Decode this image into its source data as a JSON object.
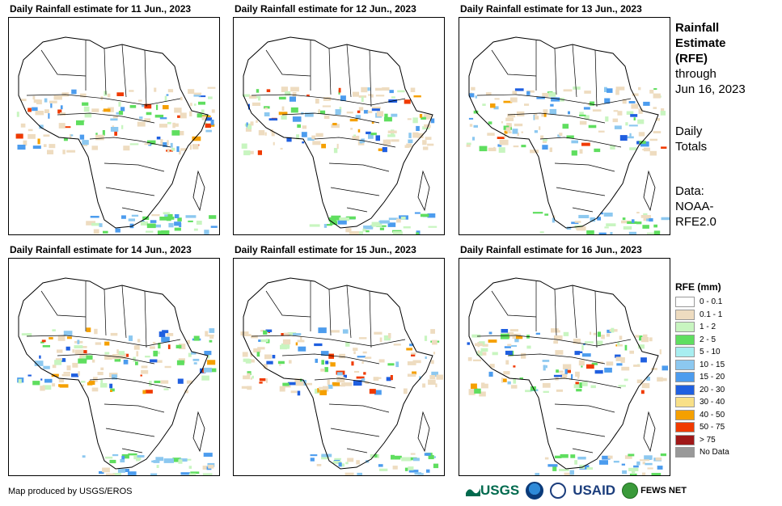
{
  "panels": [
    {
      "title": "Daily Rainfall estimate for 11 Jun., 2023"
    },
    {
      "title": "Daily Rainfall estimate for 12 Jun., 2023"
    },
    {
      "title": "Daily Rainfall estimate for 13 Jun., 2023"
    },
    {
      "title": "Daily Rainfall estimate for 14 Jun., 2023"
    },
    {
      "title": "Daily Rainfall estimate for 15 Jun., 2023"
    },
    {
      "title": "Daily Rainfall estimate for 16 Jun., 2023"
    }
  ],
  "side": {
    "title_line1": "Rainfall",
    "title_line2": "Estimate",
    "title_line3": "(RFE)",
    "through": "through",
    "date": "Jun 16, 2023",
    "daily_line1": "Daily",
    "daily_line2": "Totals",
    "data_line1": "Data:",
    "data_line2": "NOAA-",
    "data_line3": "RFE2.0"
  },
  "legend": {
    "title": "RFE (mm)",
    "items": [
      {
        "label": "0 - 0.1",
        "color": "#ffffff"
      },
      {
        "label": "0.1 - 1",
        "color": "#eedcc0"
      },
      {
        "label": "1 - 2",
        "color": "#c8f5c0"
      },
      {
        "label": "2 - 5",
        "color": "#5fde5f"
      },
      {
        "label": "5 - 10",
        "color": "#a8eef0"
      },
      {
        "label": "10 - 15",
        "color": "#8cc8f0"
      },
      {
        "label": "15 - 20",
        "color": "#4c9cee"
      },
      {
        "label": "20 - 30",
        "color": "#1f5fe0"
      },
      {
        "label": "30 - 40",
        "color": "#f8e088"
      },
      {
        "label": "40 - 50",
        "color": "#f5a000"
      },
      {
        "label": "50 - 75",
        "color": "#f03a00"
      },
      {
        "label": "> 75",
        "color": "#a01818"
      },
      {
        "label": "No Data",
        "color": "#999999"
      }
    ]
  },
  "credit": "Map produced by USGS/EROS",
  "logos": {
    "usgs": "USGS",
    "usaid": "USAID",
    "fews": "FEWS NET"
  }
}
